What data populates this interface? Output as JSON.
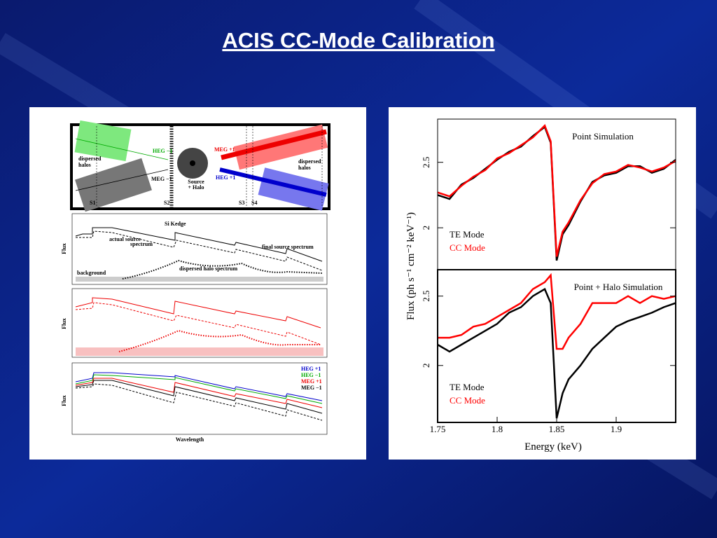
{
  "title": "ACIS CC-Mode Calibration",
  "diagram": {
    "layout": {
      "heg_minus1": "HEG −1",
      "meg_plus1": "MEG +1",
      "meg_minus1": "MEG −1",
      "heg_plus1": "HEG +1",
      "halos_left": [
        "dispersed",
        "halos"
      ],
      "halos_right": [
        "dispersed",
        "halos"
      ],
      "source": [
        "Source",
        "+ Halo"
      ],
      "chips": [
        "S1",
        "S2",
        "S3",
        "S4"
      ]
    },
    "spectrum": {
      "edge": "Si Kedge",
      "actual": [
        "actual source",
        "spectrum"
      ],
      "final": "final source spectrum",
      "halo": "dispersed halo spectrum",
      "background": "background",
      "ylabel": "Flux"
    },
    "corrected": {
      "ylabel": "Flux"
    },
    "orders": {
      "ylabel": "Flux",
      "legend": [
        "HEG +1",
        "HEG −1",
        "MEG +1",
        "MEG −1"
      ],
      "xlabel": "Wavelength"
    }
  },
  "chart_data": [
    {
      "type": "line",
      "annotation": "Point Simulation",
      "ylabel": "Flux (ph s⁻¹ cm⁻² keV⁻¹)",
      "x": [
        1.75,
        1.76,
        1.77,
        1.78,
        1.79,
        1.8,
        1.81,
        1.82,
        1.83,
        1.84,
        1.845,
        1.85,
        1.855,
        1.86,
        1.87,
        1.88,
        1.89,
        1.9,
        1.91,
        1.92,
        1.93,
        1.94,
        1.95
      ],
      "series": [
        {
          "name": "TE Mode",
          "color": "#000000",
          "values": [
            2.25,
            2.22,
            2.33,
            2.38,
            2.45,
            2.52,
            2.58,
            2.62,
            2.7,
            2.77,
            2.65,
            1.75,
            1.95,
            2.02,
            2.2,
            2.35,
            2.4,
            2.42,
            2.47,
            2.47,
            2.42,
            2.45,
            2.52
          ]
        },
        {
          "name": "CC Mode",
          "color": "#ff0000",
          "values": [
            2.27,
            2.24,
            2.32,
            2.39,
            2.44,
            2.53,
            2.57,
            2.63,
            2.69,
            2.78,
            2.66,
            1.78,
            1.97,
            2.04,
            2.21,
            2.34,
            2.41,
            2.43,
            2.48,
            2.46,
            2.43,
            2.46,
            2.51
          ]
        }
      ],
      "xlim": [
        1.75,
        1.95
      ],
      "ylim": [
        1.68,
        2.83
      ],
      "yticks": [
        2,
        2.5
      ]
    },
    {
      "type": "line",
      "annotation": "Point + Halo Simulation",
      "xlabel": "Energy (keV)",
      "x": [
        1.75,
        1.76,
        1.77,
        1.78,
        1.79,
        1.8,
        1.81,
        1.82,
        1.83,
        1.84,
        1.845,
        1.85,
        1.855,
        1.86,
        1.87,
        1.88,
        1.89,
        1.9,
        1.91,
        1.92,
        1.93,
        1.94,
        1.95
      ],
      "series": [
        {
          "name": "TE Mode",
          "color": "#000000",
          "values": [
            2.15,
            2.1,
            2.15,
            2.2,
            2.25,
            2.3,
            2.38,
            2.42,
            2.5,
            2.55,
            2.45,
            1.62,
            1.8,
            1.9,
            2,
            2.12,
            2.2,
            2.28,
            2.32,
            2.35,
            2.38,
            2.42,
            2.45
          ]
        },
        {
          "name": "CC Mode",
          "color": "#ff0000",
          "values": [
            2.2,
            2.2,
            2.22,
            2.28,
            2.3,
            2.35,
            2.4,
            2.45,
            2.55,
            2.6,
            2.65,
            2.12,
            2.12,
            2.2,
            2.3,
            2.45,
            2.45,
            2.45,
            2.5,
            2.45,
            2.5,
            2.48,
            2.5
          ]
        }
      ],
      "xlim": [
        1.75,
        1.95
      ],
      "ylim": [
        1.59,
        2.69
      ],
      "xticks": [
        1.75,
        1.8,
        1.85,
        1.9
      ],
      "yticks": [
        2,
        2.5
      ]
    }
  ]
}
